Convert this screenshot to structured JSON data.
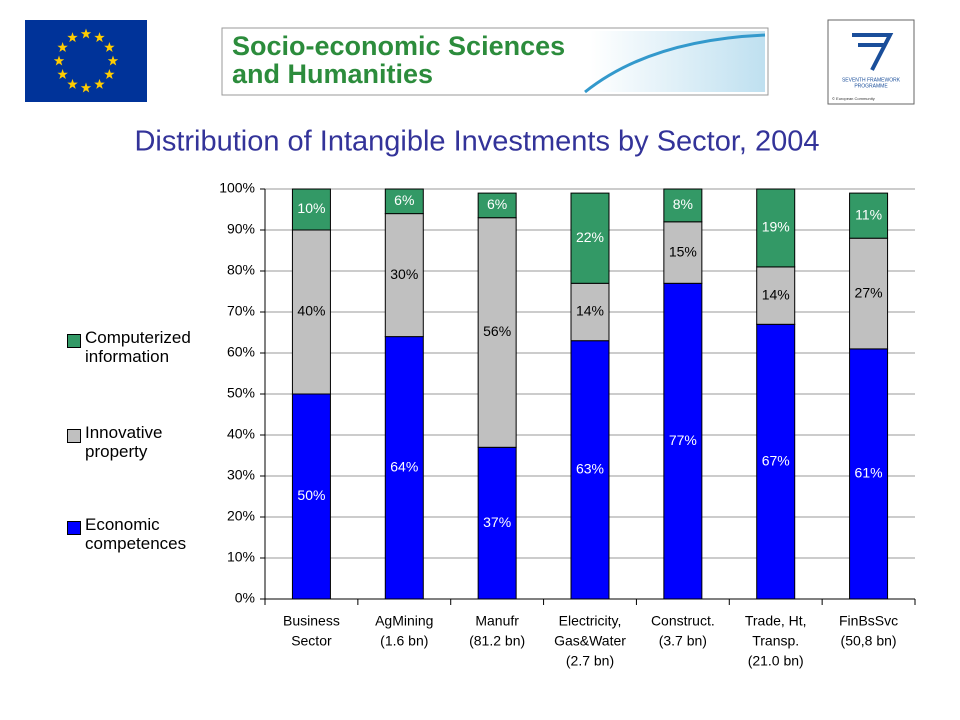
{
  "header": {
    "banner": [
      "Socio-economic Sciences",
      "and Humanities"
    ],
    "fp7": [
      "SEVENTH FRAMEWORK",
      "PROGRAMME"
    ],
    "copyright": "© European Community"
  },
  "chart_data": {
    "type": "bar",
    "stacked": true,
    "title": "Distribution of Intangible Investments by Sector, 2004",
    "categories": [
      [
        "Business",
        "Sector"
      ],
      [
        "AgMining",
        "(1.6 bn)"
      ],
      [
        "Manufr",
        "(81.2 bn)"
      ],
      [
        "Electricity,",
        "Gas&Water",
        "(2.7 bn)"
      ],
      [
        "Construct.",
        "(3.7 bn)"
      ],
      [
        "Trade, Ht,",
        "Transp.",
        "(21.0 bn)"
      ],
      [
        "FinBsSvc",
        "(50,8 bn)"
      ]
    ],
    "series": [
      {
        "name": "Economic competences",
        "color": "#0000ff",
        "label_color": "#ffffff",
        "values": [
          50,
          64,
          37,
          63,
          77,
          67,
          61
        ],
        "value_labels": [
          "50%",
          "64%",
          "37%",
          "63%",
          "77%",
          "67%",
          "61%"
        ]
      },
      {
        "name": "Innovative property",
        "color": "#c0c0c0",
        "label_color": "#000000",
        "values": [
          40,
          30,
          56,
          14,
          15,
          14,
          27
        ],
        "value_labels": [
          "40%",
          "30%",
          "56%",
          "14%",
          "15%",
          "14%",
          "27%"
        ]
      },
      {
        "name": "Computerized information",
        "color": "#339966",
        "label_color": "#ffffff",
        "values": [
          10,
          6,
          6,
          22,
          8,
          19,
          11
        ],
        "value_labels": [
          "10%",
          "6%",
          "6%",
          "22%",
          "8%",
          "19%",
          "11%"
        ]
      }
    ],
    "ylim": [
      0,
      100
    ],
    "yticks": [
      {
        "value": 0,
        "label": "0%"
      },
      {
        "value": 10,
        "label": "10%"
      },
      {
        "value": 20,
        "label": "20%"
      },
      {
        "value": 30,
        "label": "30%"
      },
      {
        "value": 40,
        "label": "40%"
      },
      {
        "value": 50,
        "label": "50%"
      },
      {
        "value": 60,
        "label": "60%"
      },
      {
        "value": 70,
        "label": "70%"
      },
      {
        "value": 80,
        "label": "80%"
      },
      {
        "value": 90,
        "label": "90%"
      },
      {
        "value": 100,
        "label": "100%"
      }
    ],
    "grid": true,
    "legend": "left"
  }
}
